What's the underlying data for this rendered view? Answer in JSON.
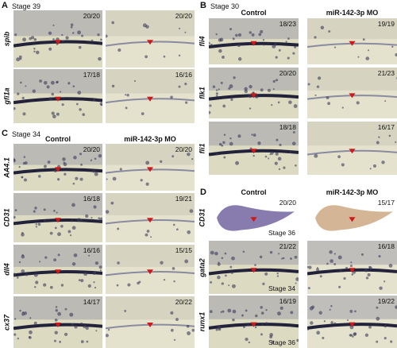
{
  "panels": [
    {
      "label": "A",
      "stage": "Stage 39",
      "rows": [
        {
          "gene": "spib",
          "counts": [
            "20/20",
            "20/20"
          ]
        },
        {
          "gene": "gfi1a",
          "counts": [
            "17/18",
            "16/16"
          ]
        }
      ]
    },
    {
      "label": "B",
      "stage": "Stage 30",
      "columns": [
        "Control",
        "miR-142-3p MO"
      ],
      "rows": [
        {
          "gene": "fli4",
          "counts": [
            "18/23",
            "19/19"
          ]
        },
        {
          "gene": "flk1",
          "counts": [
            "20/20",
            "21/23"
          ]
        },
        {
          "gene": "fli1",
          "counts": [
            "18/18",
            "16/17"
          ]
        }
      ]
    },
    {
      "label": "C",
      "stage": "Stage 34",
      "columns": [
        "Control",
        "miR-142-3p MO"
      ],
      "rows": [
        {
          "gene": "AA4.1",
          "counts": [
            "20/20",
            "20/20"
          ]
        },
        {
          "gene": "CD31",
          "counts": [
            "16/18",
            "19/21"
          ]
        },
        {
          "gene": "dll4",
          "counts": [
            "16/16",
            "15/15"
          ]
        },
        {
          "gene": "cx37",
          "counts": [
            "14/17",
            "20/22"
          ]
        }
      ]
    },
    {
      "label": "D",
      "columns": [
        "Control",
        "miR-142-3p MO"
      ],
      "rows": [
        {
          "gene": "CD31",
          "counts": [
            "20/20",
            "15/17"
          ],
          "stage": "Stage 36"
        },
        {
          "gene": "gata2",
          "counts": [
            "21/22",
            "16/18"
          ],
          "stage": "Stage 34"
        },
        {
          "gene": "runx1",
          "counts": [
            "16/19",
            "19/22"
          ],
          "stage": "Stage 36"
        }
      ]
    }
  ]
}
